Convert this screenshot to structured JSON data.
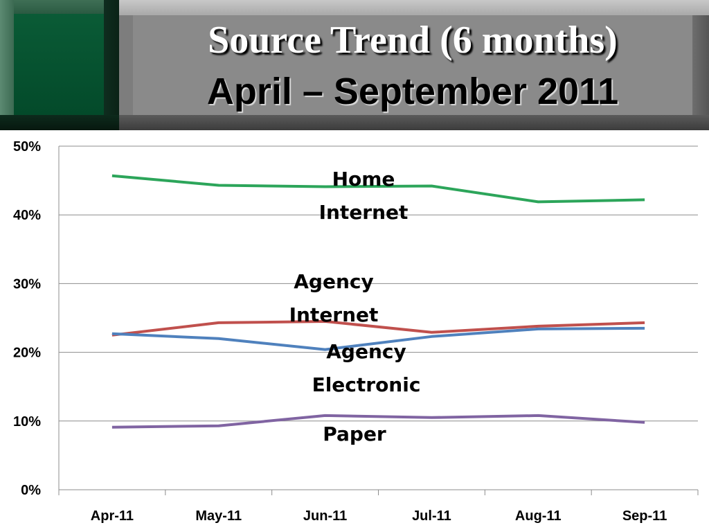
{
  "header": {
    "title_line1": "Source Trend (6 months)",
    "title_line2": "April – September 2011",
    "colors": {
      "banner": "#8a8a8a",
      "accent_box": "#034a2a"
    }
  },
  "chart_data": {
    "type": "line",
    "categories": [
      "Apr-11",
      "May-11",
      "Jun-11",
      "Jul-11",
      "Aug-11",
      "Sep-11"
    ],
    "ylim": [
      0,
      50
    ],
    "yticks": [
      0,
      10,
      20,
      30,
      40,
      50
    ],
    "ytick_labels": [
      "0%",
      "10%",
      "20%",
      "30%",
      "40%",
      "50%"
    ],
    "grid": true,
    "legend": "none",
    "series": [
      {
        "name": "Home Internet",
        "label_lines": [
          "Home",
          "Internet"
        ],
        "color": "#2ca55a",
        "values": [
          45.7,
          44.3,
          44.1,
          44.2,
          41.9,
          42.2
        ]
      },
      {
        "name": "Agency Internet",
        "label_lines": [
          "Agency",
          "Internet"
        ],
        "color": "#c0504d",
        "values": [
          22.5,
          24.3,
          24.5,
          22.9,
          23.8,
          24.3
        ]
      },
      {
        "name": "Agency Electronic",
        "label_lines": [
          "Agency",
          "Electronic"
        ],
        "color": "#4f81bd",
        "values": [
          22.7,
          22.0,
          20.4,
          22.3,
          23.4,
          23.5
        ]
      },
      {
        "name": "Paper",
        "label_lines": [
          "Paper"
        ],
        "color": "#8064a2",
        "values": [
          9.1,
          9.3,
          10.8,
          10.5,
          10.8,
          9.8
        ]
      }
    ]
  }
}
